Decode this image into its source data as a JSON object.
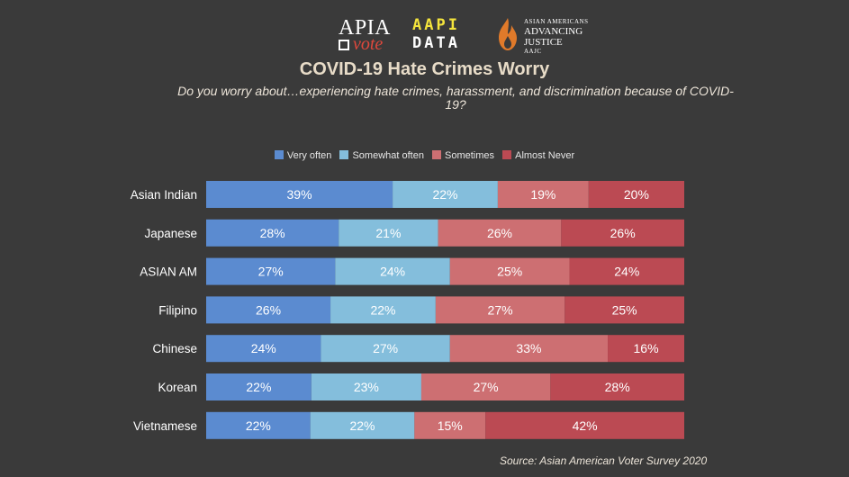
{
  "logos": {
    "apia": {
      "top": "APIA",
      "bottom": "vote"
    },
    "aapi_data": {
      "line1": "AAPI",
      "line2": "DATA"
    },
    "aajc": {
      "line1": "ASIAN AMERICANS",
      "line2": "ADVANCING",
      "line3": "JUSTICE",
      "line4": "AAJC"
    }
  },
  "source": "Source: Asian American Voter Survey 2020",
  "chart_data": {
    "type": "bar",
    "orientation": "horizontal",
    "stacked": true,
    "title": "COVID-19 Hate Crimes Worry",
    "subtitle": "Do you worry about…experiencing hate crimes, harassment, and discrimination because of COVID-19?",
    "categories": [
      "Asian Indian",
      "Japanese",
      "ASIAN AM",
      "Filipino",
      "Chinese",
      "Korean",
      "Vietnamese"
    ],
    "series": [
      {
        "name": "Very often",
        "color": "#5b8bd0",
        "values": [
          39,
          28,
          27,
          26,
          24,
          22,
          22
        ]
      },
      {
        "name": "Somewhat often",
        "color": "#84bedc",
        "values": [
          22,
          21,
          24,
          22,
          27,
          23,
          22
        ]
      },
      {
        "name": "Sometimes",
        "color": "#cd6f72",
        "values": [
          19,
          26,
          25,
          27,
          33,
          27,
          15
        ]
      },
      {
        "name": "Almost Never",
        "color": "#bb4a53",
        "values": [
          20,
          26,
          24,
          25,
          16,
          28,
          42
        ]
      }
    ],
    "value_suffix": "%",
    "legend_position": "top",
    "grid": false
  }
}
